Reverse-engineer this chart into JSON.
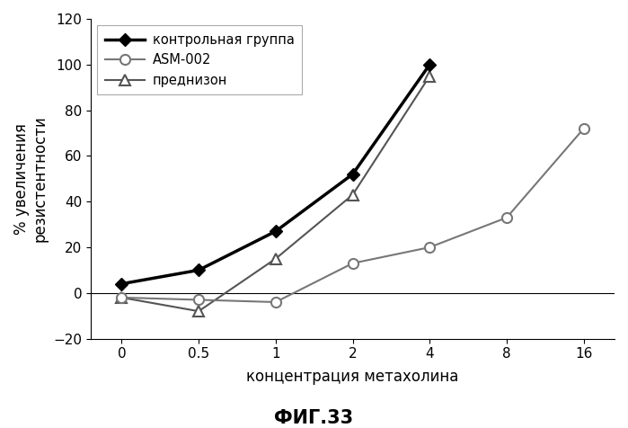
{
  "x_values": [
    0,
    0.5,
    1,
    2,
    4,
    8,
    16
  ],
  "control_group": [
    4,
    10,
    27,
    52,
    100,
    null,
    null
  ],
  "asm002": [
    -2,
    -3,
    -4,
    13,
    20,
    33,
    72
  ],
  "prednison": [
    -2,
    -8,
    15,
    43,
    95,
    null,
    null
  ],
  "x_ticks": [
    "0",
    "0.5",
    "1",
    "2",
    "4",
    "8",
    "16"
  ],
  "ylim": [
    -20,
    120
  ],
  "yticks": [
    -20,
    0,
    20,
    40,
    60,
    80,
    100,
    120
  ],
  "ylabel": "% увеличения\nрезистентности",
  "xlabel": "концентрация метахолина",
  "caption": "ФИГ.33",
  "legend_labels": [
    "контрольная группа",
    "ASM-002",
    "преднизон"
  ],
  "control_color": "#000000",
  "asm002_color": "#777777",
  "prednison_color": "#555555",
  "background_color": "#ffffff"
}
